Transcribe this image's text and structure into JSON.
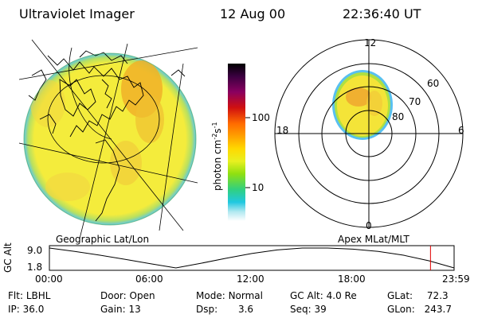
{
  "header": {
    "title": "Ultraviolet Imager",
    "date": "12 Aug 00",
    "time": "22:36:40 UT"
  },
  "colorbar": {
    "unit": "photon cm",
    "unit_exp1": "-2",
    "unit_mid": "s",
    "unit_exp2": "-1",
    "tick_100": "100",
    "tick_10": "10",
    "colors": [
      "#000000",
      "#3a0040",
      "#6e0070",
      "#b00020",
      "#e02000",
      "#ff6a00",
      "#ffa000",
      "#ffd000",
      "#f0f020",
      "#b8f000",
      "#70e000",
      "#20e080",
      "#00d0e0",
      "#a0e8f0",
      "#ffffff"
    ]
  },
  "left_map": {
    "caption": "Geographic Lat/Lon",
    "fill_colors": {
      "main": "#f4ec3c",
      "bright": "#f0b020",
      "limb": "#80d0e8",
      "rim": "#50c060"
    }
  },
  "polar": {
    "caption": "Apex MLat/MLT",
    "mlt_labels": {
      "top": "12",
      "bottom": "0",
      "left": "18",
      "right": "6"
    },
    "lat_labels": {
      "r60": "60",
      "r70": "70",
      "r80": "80"
    }
  },
  "altitude": {
    "axis_label": "GC Alt",
    "ticks": {
      "high": "9.0",
      "low": "1.8"
    },
    "time_ticks": [
      "00:00",
      "06:00",
      "12:00",
      "18:00",
      "23:59"
    ],
    "marker_color": "#e00000",
    "curve_alt_re": [
      9.0,
      7.8,
      6.4,
      4.9,
      3.3,
      1.8,
      3.5,
      5.3,
      7.0,
      8.3,
      9.0,
      9.0,
      8.6,
      7.8,
      6.4,
      4.4,
      1.8
    ],
    "marker_hour": 22.6
  },
  "footer": {
    "row1": [
      {
        "label": "Flt:",
        "value": "LBHL"
      },
      {
        "label": "Door:",
        "value": "Open"
      },
      {
        "label": "Mode:",
        "value": "Normal"
      },
      {
        "label": "GC Alt:",
        "value": "4.0 Re"
      },
      {
        "label": "GLat:",
        "value": "72.3"
      }
    ],
    "row2": [
      {
        "label": "IP:",
        "value": "36.0"
      },
      {
        "label": "Gain:",
        "value": "13"
      },
      {
        "label": "Dsp:",
        "value": "3.6"
      },
      {
        "label": "Seq:",
        "value": "39"
      },
      {
        "label": "GLon:",
        "value": "243.7"
      }
    ]
  }
}
